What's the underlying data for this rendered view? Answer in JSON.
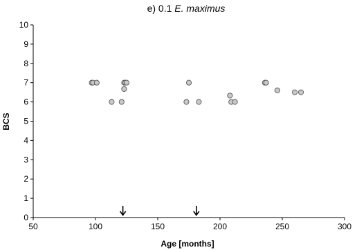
{
  "chart_data": {
    "type": "scatter",
    "title": "e) 0.1",
    "title_species": "E. maximus",
    "xlabel": "Age [months]",
    "ylabel": "BCS",
    "xlim": [
      50,
      300
    ],
    "ylim": [
      0,
      10
    ],
    "xticks": [
      50,
      100,
      150,
      200,
      250,
      300
    ],
    "yticks": [
      0,
      1,
      2,
      3,
      4,
      5,
      6,
      7,
      8,
      9,
      10
    ],
    "grid": false,
    "marker_fill": "#c8c8c8",
    "marker_edge": "#555555",
    "points": [
      {
        "x": 97,
        "y": 7
      },
      {
        "x": 98,
        "y": 7
      },
      {
        "x": 101,
        "y": 7
      },
      {
        "x": 113,
        "y": 6
      },
      {
        "x": 121,
        "y": 6
      },
      {
        "x": 123,
        "y": 6.67
      },
      {
        "x": 123,
        "y": 7
      },
      {
        "x": 124,
        "y": 7
      },
      {
        "x": 125,
        "y": 7
      },
      {
        "x": 173,
        "y": 6
      },
      {
        "x": 175,
        "y": 7
      },
      {
        "x": 183,
        "y": 6
      },
      {
        "x": 208,
        "y": 6.33
      },
      {
        "x": 209,
        "y": 6
      },
      {
        "x": 212,
        "y": 6
      },
      {
        "x": 236,
        "y": 7
      },
      {
        "x": 237,
        "y": 7
      },
      {
        "x": 246,
        "y": 6.6
      },
      {
        "x": 260,
        "y": 6.5
      },
      {
        "x": 265,
        "y": 6.5
      }
    ],
    "event_arrows_x": [
      122,
      181
    ]
  }
}
